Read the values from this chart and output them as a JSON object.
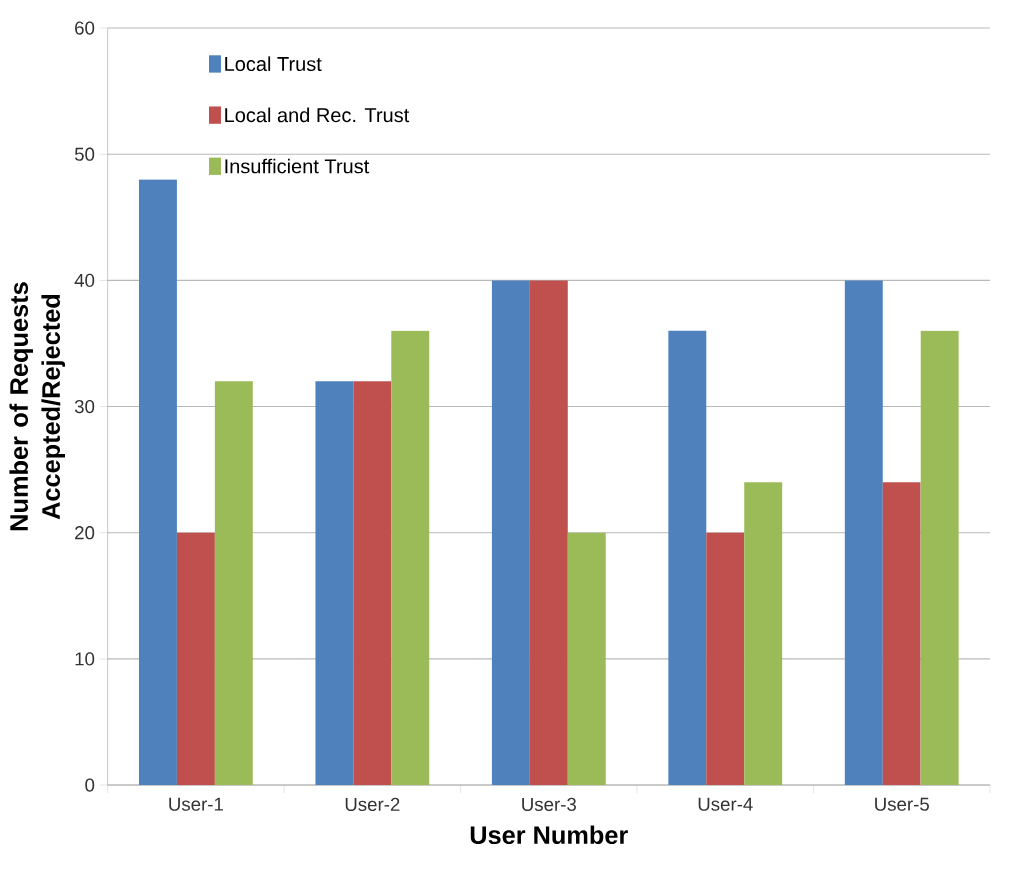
{
  "chart_data": {
    "type": "bar",
    "xlabel": "User Number",
    "ylabel": "Number of Requests Accepted/Rejected",
    "categories": [
      "User-1",
      "User-2",
      "User-3",
      "User-4",
      "User-5"
    ],
    "series": [
      {
        "name": "Local Trust",
        "color": "#4f81bd",
        "values": [
          48,
          32,
          40,
          36,
          40
        ]
      },
      {
        "name": "Local and Rec. Trust",
        "color": "#c0504d",
        "values": [
          20,
          32,
          40,
          20,
          24
        ]
      },
      {
        "name": "Insufficient Trust",
        "color": "#9bbb59",
        "values": [
          32,
          36,
          20,
          24,
          36
        ]
      }
    ],
    "ylim": [
      0,
      60
    ],
    "yticks": [
      0,
      10,
      20,
      30,
      40,
      50,
      60
    ],
    "grid": "y",
    "legend": "top left"
  }
}
